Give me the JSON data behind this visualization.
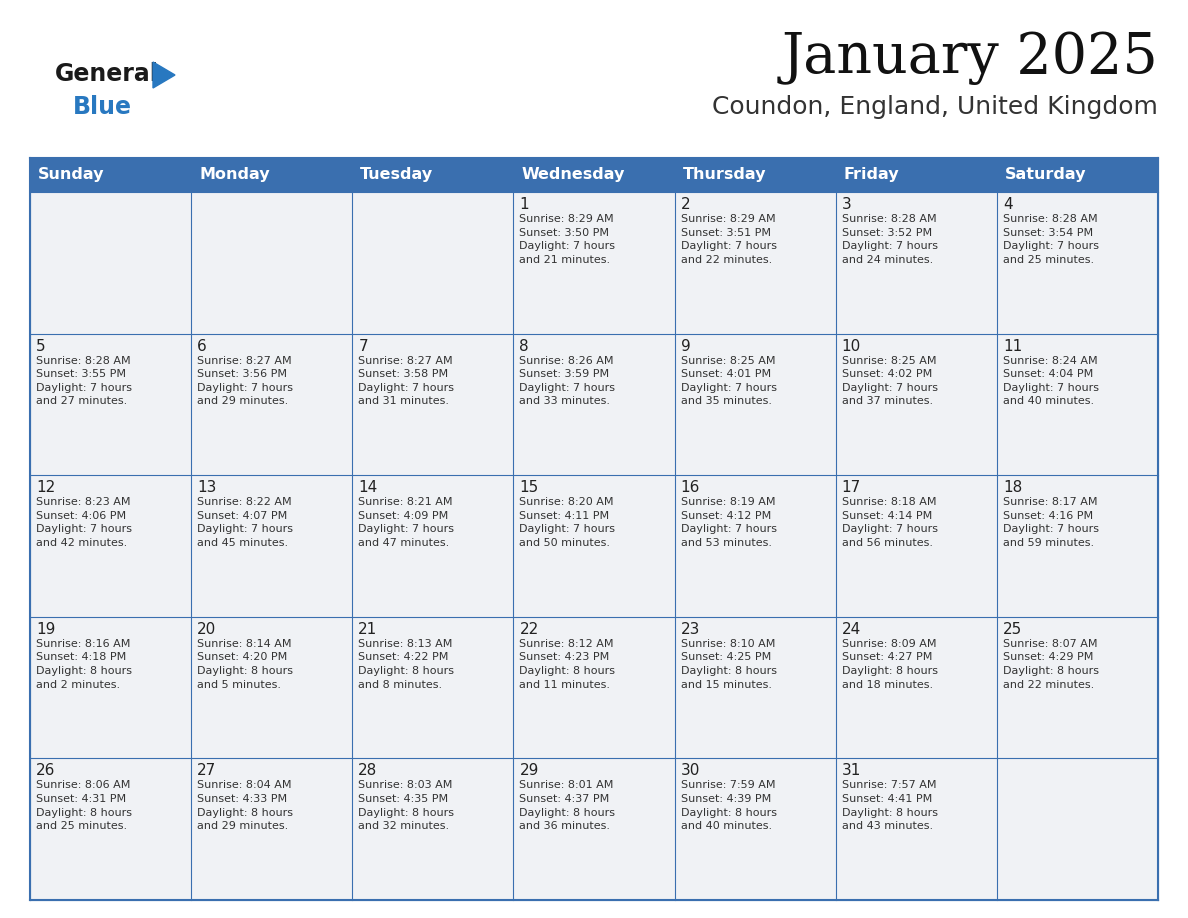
{
  "title": "January 2025",
  "subtitle": "Coundon, England, United Kingdom",
  "header_bg": "#3a6faf",
  "header_text": "#ffffff",
  "cell_bg": "#f0f2f5",
  "cell_bg_white": "#ffffff",
  "border_color": "#3a6faf",
  "text_color": "#333333",
  "day_headers": [
    "Sunday",
    "Monday",
    "Tuesday",
    "Wednesday",
    "Thursday",
    "Friday",
    "Saturday"
  ],
  "calendar_data": [
    [
      "",
      "",
      "",
      "1\nSunrise: 8:29 AM\nSunset: 3:50 PM\nDaylight: 7 hours\nand 21 minutes.",
      "2\nSunrise: 8:29 AM\nSunset: 3:51 PM\nDaylight: 7 hours\nand 22 minutes.",
      "3\nSunrise: 8:28 AM\nSunset: 3:52 PM\nDaylight: 7 hours\nand 24 minutes.",
      "4\nSunrise: 8:28 AM\nSunset: 3:54 PM\nDaylight: 7 hours\nand 25 minutes."
    ],
    [
      "5\nSunrise: 8:28 AM\nSunset: 3:55 PM\nDaylight: 7 hours\nand 27 minutes.",
      "6\nSunrise: 8:27 AM\nSunset: 3:56 PM\nDaylight: 7 hours\nand 29 minutes.",
      "7\nSunrise: 8:27 AM\nSunset: 3:58 PM\nDaylight: 7 hours\nand 31 minutes.",
      "8\nSunrise: 8:26 AM\nSunset: 3:59 PM\nDaylight: 7 hours\nand 33 minutes.",
      "9\nSunrise: 8:25 AM\nSunset: 4:01 PM\nDaylight: 7 hours\nand 35 minutes.",
      "10\nSunrise: 8:25 AM\nSunset: 4:02 PM\nDaylight: 7 hours\nand 37 minutes.",
      "11\nSunrise: 8:24 AM\nSunset: 4:04 PM\nDaylight: 7 hours\nand 40 minutes."
    ],
    [
      "12\nSunrise: 8:23 AM\nSunset: 4:06 PM\nDaylight: 7 hours\nand 42 minutes.",
      "13\nSunrise: 8:22 AM\nSunset: 4:07 PM\nDaylight: 7 hours\nand 45 minutes.",
      "14\nSunrise: 8:21 AM\nSunset: 4:09 PM\nDaylight: 7 hours\nand 47 minutes.",
      "15\nSunrise: 8:20 AM\nSunset: 4:11 PM\nDaylight: 7 hours\nand 50 minutes.",
      "16\nSunrise: 8:19 AM\nSunset: 4:12 PM\nDaylight: 7 hours\nand 53 minutes.",
      "17\nSunrise: 8:18 AM\nSunset: 4:14 PM\nDaylight: 7 hours\nand 56 minutes.",
      "18\nSunrise: 8:17 AM\nSunset: 4:16 PM\nDaylight: 7 hours\nand 59 minutes."
    ],
    [
      "19\nSunrise: 8:16 AM\nSunset: 4:18 PM\nDaylight: 8 hours\nand 2 minutes.",
      "20\nSunrise: 8:14 AM\nSunset: 4:20 PM\nDaylight: 8 hours\nand 5 minutes.",
      "21\nSunrise: 8:13 AM\nSunset: 4:22 PM\nDaylight: 8 hours\nand 8 minutes.",
      "22\nSunrise: 8:12 AM\nSunset: 4:23 PM\nDaylight: 8 hours\nand 11 minutes.",
      "23\nSunrise: 8:10 AM\nSunset: 4:25 PM\nDaylight: 8 hours\nand 15 minutes.",
      "24\nSunrise: 8:09 AM\nSunset: 4:27 PM\nDaylight: 8 hours\nand 18 minutes.",
      "25\nSunrise: 8:07 AM\nSunset: 4:29 PM\nDaylight: 8 hours\nand 22 minutes."
    ],
    [
      "26\nSunrise: 8:06 AM\nSunset: 4:31 PM\nDaylight: 8 hours\nand 25 minutes.",
      "27\nSunrise: 8:04 AM\nSunset: 4:33 PM\nDaylight: 8 hours\nand 29 minutes.",
      "28\nSunrise: 8:03 AM\nSunset: 4:35 PM\nDaylight: 8 hours\nand 32 minutes.",
      "29\nSunrise: 8:01 AM\nSunset: 4:37 PM\nDaylight: 8 hours\nand 36 minutes.",
      "30\nSunrise: 7:59 AM\nSunset: 4:39 PM\nDaylight: 8 hours\nand 40 minutes.",
      "31\nSunrise: 7:57 AM\nSunset: 4:41 PM\nDaylight: 8 hours\nand 43 minutes.",
      ""
    ]
  ],
  "logo_general_color": "#1a1a1a",
  "logo_blue_color": "#2878c0",
  "logo_triangle_color": "#2878c0",
  "fig_width": 11.88,
  "fig_height": 9.18,
  "dpi": 100
}
